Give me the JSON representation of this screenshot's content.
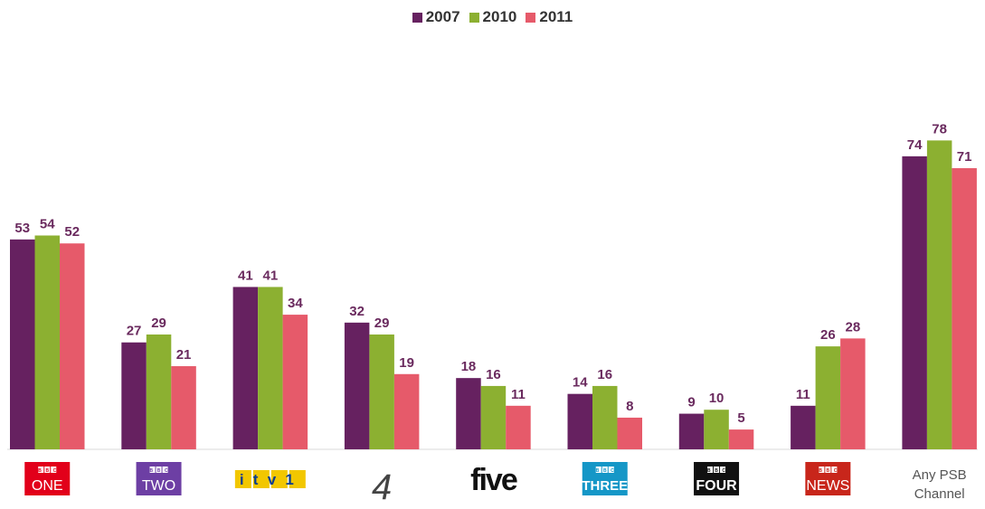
{
  "chart_data": {
    "type": "bar",
    "categories": [
      "BBC ONE",
      "BBC TWO",
      "ITV1",
      "4",
      "five",
      "BBC THREE",
      "BBC FOUR",
      "BBC NEWS",
      "Any PSB Channel"
    ],
    "category_display": [
      {
        "badge": "BBC",
        "text": "ONE",
        "style": "bbc",
        "bg": "#e2001a",
        "fg": "#ffffff"
      },
      {
        "badge": "BBC",
        "text": "TWO",
        "style": "bbc",
        "bg": "#6d3fa4",
        "fg": "#ffffff"
      },
      {
        "text": "itv1",
        "style": "itv",
        "bg": "#f2c700",
        "fg": "#0a3d8f"
      },
      {
        "text": "4",
        "style": "c4",
        "fg": "#444444"
      },
      {
        "text": "five",
        "style": "five",
        "fg": "#111111"
      },
      {
        "badge": "BBC",
        "text": "THREE",
        "style": "bbc",
        "bg": "#1597c7",
        "fg": "#ffffff"
      },
      {
        "badge": "BBC",
        "text": "FOUR",
        "style": "bbc",
        "bg": "#111111",
        "fg": "#ffffff"
      },
      {
        "badge": "BBC",
        "text": "NEWS",
        "style": "bbc",
        "bg": "#c8261b",
        "fg": "#ffffff"
      },
      {
        "lines": [
          "Any PSB",
          "Channel"
        ],
        "style": "plain",
        "fg": "#555555"
      }
    ],
    "series": [
      {
        "name": "2007",
        "color": "#662160",
        "values": [
          53,
          27,
          41,
          32,
          18,
          14,
          9,
          11,
          74
        ]
      },
      {
        "name": "2010",
        "color": "#8cb031",
        "values": [
          54,
          29,
          41,
          29,
          16,
          16,
          10,
          26,
          78
        ]
      },
      {
        "name": "2011",
        "color": "#e65a6a",
        "values": [
          52,
          21,
          34,
          19,
          11,
          8,
          5,
          28,
          71
        ]
      }
    ],
    "legend_position": "top-center",
    "grid": false
  }
}
